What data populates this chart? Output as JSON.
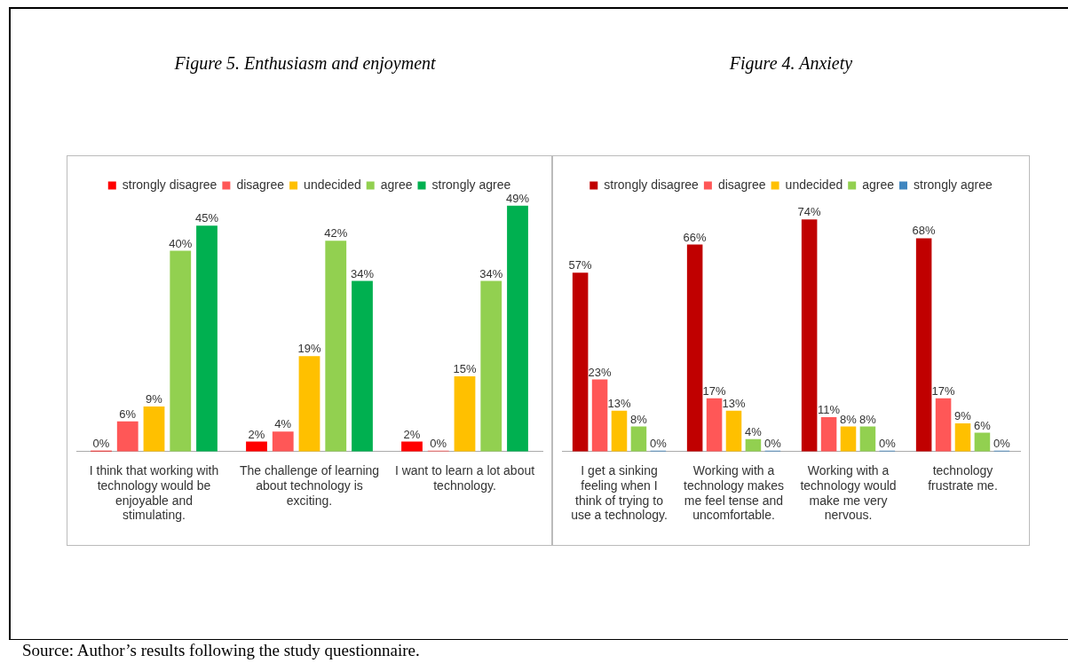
{
  "chart_data": [
    {
      "type": "bar",
      "title": "Figure 5. Enthusiasm and enjoyment",
      "categories": [
        "I think that working with technology would be enjoyable and stimulating.",
        "The challenge of learning about technology is exciting.",
        "I want to learn a lot about technology."
      ],
      "series": [
        {
          "name": "strongly disagree",
          "color": "#ff0000",
          "values": [
            0,
            2,
            2
          ],
          "value_labels": [
            "0%",
            "2%",
            "2%"
          ]
        },
        {
          "name": "disagree",
          "color": "#ff5757",
          "values": [
            6,
            4,
            0
          ],
          "value_labels": [
            "6%",
            "4%",
            "0%"
          ]
        },
        {
          "name": "undecided",
          "color": "#ffc000",
          "values": [
            9,
            19,
            15
          ],
          "value_labels": [
            "9%",
            "19%",
            "15%"
          ]
        },
        {
          "name": "agree",
          "color": "#92d050",
          "values": [
            40,
            42,
            34
          ],
          "value_labels": [
            "40%",
            "42%",
            "34%"
          ]
        },
        {
          "name": "strongly agree",
          "color": "#00b050",
          "values": [
            45,
            34,
            49
          ],
          "value_labels": [
            "45%",
            "34%",
            "49%"
          ]
        }
      ],
      "legend": "top",
      "grid": false,
      "tick_labels": "x",
      "annotations": [
        "Source: Author’s results following the study questionnaire."
      ]
    },
    {
      "type": "bar",
      "title": "Figure 4. Anxiety",
      "categories": [
        "I get a sinking feeling when I think of trying to use a technology.",
        "Working with a technology makes me feel tense and uncomfortable.",
        "Working with a technology would make me very nervous.",
        "technology frustrate me."
      ],
      "series": [
        {
          "name": "strongly disagree",
          "color": "#c00000",
          "values": [
            57,
            66,
            74,
            68
          ],
          "value_labels": [
            "57%",
            "66%",
            "74%",
            "68%"
          ]
        },
        {
          "name": "disagree",
          "color": "#ff5757",
          "values": [
            23,
            17,
            11,
            17
          ],
          "value_labels": [
            "23%",
            "17%",
            "11%",
            "17%"
          ]
        },
        {
          "name": "undecided",
          "color": "#ffc000",
          "values": [
            13,
            13,
            8,
            9
          ],
          "value_labels": [
            "13%",
            "13%",
            "8%",
            "9%"
          ]
        },
        {
          "name": "agree",
          "color": "#92d050",
          "values": [
            8,
            4,
            8,
            6
          ],
          "value_labels": [
            "8%",
            "4%",
            "8%",
            "6%"
          ]
        },
        {
          "name": "strongly agree",
          "color": "#3f86c0",
          "values": [
            0,
            0,
            0,
            0
          ],
          "value_labels": [
            "0%",
            "0%",
            "0%",
            "0%"
          ]
        }
      ],
      "legend": "top",
      "grid": false,
      "tick_labels": "x"
    }
  ]
}
